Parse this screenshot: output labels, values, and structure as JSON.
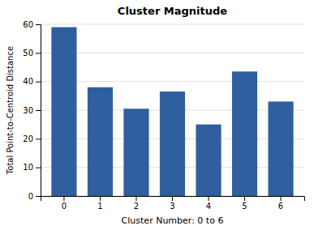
{
  "chart_data": {
    "type": "bar",
    "title": "Cluster Magnitude",
    "xlabel": "Cluster Number: 0 to 6",
    "ylabel": "Total Point-to-Centroid Distance",
    "categories": [
      0,
      1,
      2,
      3,
      4,
      5,
      6
    ],
    "values": [
      59,
      38,
      30.5,
      36.5,
      25,
      43.5,
      33
    ],
    "color": "#2f5f9e",
    "ylim": [
      0,
      60
    ],
    "yticks": [
      0,
      10,
      20,
      30,
      40,
      50,
      60
    ],
    "grid": true
  }
}
